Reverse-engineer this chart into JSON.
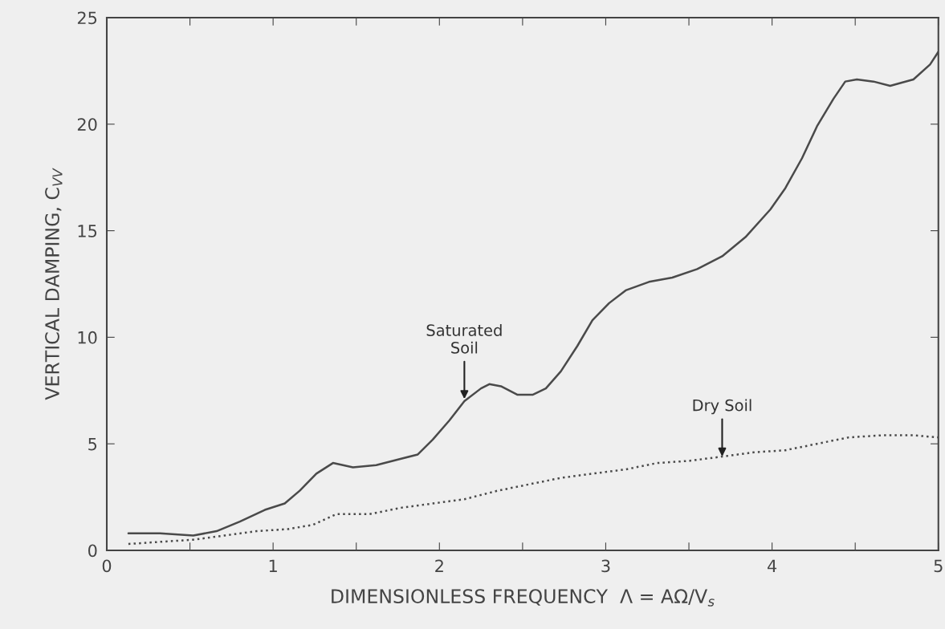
{
  "chart_data": {
    "type": "line",
    "xlabel": "DIMENSIONLESS FREQUENCY  Λ = AΩ/V$_{s}$",
    "ylabel": "VERTICAL DAMPING, C$_{VV}$",
    "xlim": [
      0,
      5
    ],
    "ylim": [
      0,
      25
    ],
    "xticks": [
      0,
      {
        "value": 0.5,
        "label": null
      },
      1,
      {
        "value": 1.5,
        "label": null
      },
      2,
      {
        "value": 2.5,
        "label": null
      },
      3,
      {
        "value": 3.5,
        "label": null
      },
      4,
      {
        "value": 4.5,
        "label": null
      },
      5
    ],
    "yticks": [
      0,
      5,
      10,
      15,
      20,
      25
    ],
    "grid": false,
    "legend": false,
    "series": [
      {
        "color": "#4a4a4a",
        "line_style": "solid",
        "x": [
          0.13,
          0.32,
          0.52,
          0.66,
          0.8,
          0.95,
          1.07,
          1.16,
          1.26,
          1.36,
          1.48,
          1.62,
          1.77,
          1.87,
          1.96,
          2.06,
          2.15,
          2.25,
          2.3,
          2.37,
          2.47,
          2.56,
          2.64,
          2.73,
          2.83,
          2.92,
          3.02,
          3.12,
          3.26,
          3.4,
          3.55,
          3.7,
          3.84,
          3.99,
          4.08,
          4.18,
          4.27,
          4.37,
          4.44,
          4.51,
          4.61,
          4.71,
          4.85,
          4.95,
          5.0
        ],
        "values": [
          0.8,
          0.8,
          0.7,
          0.9,
          1.35,
          1.9,
          2.2,
          2.8,
          3.6,
          4.1,
          3.9,
          4.0,
          4.3,
          4.5,
          5.2,
          6.1,
          7.0,
          7.6,
          7.8,
          7.7,
          7.3,
          7.3,
          7.6,
          8.4,
          9.6,
          10.8,
          11.6,
          12.2,
          12.6,
          12.8,
          13.2,
          13.8,
          14.7,
          16.0,
          17.0,
          18.4,
          19.9,
          21.2,
          22.0,
          22.1,
          22.0,
          21.8,
          22.1,
          22.8,
          23.4
        ]
      },
      {
        "color": "#4a4a4a",
        "line_style": "dotted",
        "x": [
          0.13,
          0.32,
          0.52,
          0.71,
          0.9,
          1.09,
          1.24,
          1.38,
          1.58,
          1.77,
          1.96,
          2.15,
          2.35,
          2.54,
          2.73,
          2.92,
          3.12,
          3.31,
          3.5,
          3.7,
          3.89,
          4.08,
          4.27,
          4.46,
          4.66,
          4.85,
          5.0
        ],
        "values": [
          0.3,
          0.4,
          0.5,
          0.7,
          0.9,
          1.0,
          1.2,
          1.7,
          1.7,
          2.0,
          2.2,
          2.4,
          2.8,
          3.1,
          3.4,
          3.6,
          3.8,
          4.1,
          4.2,
          4.4,
          4.6,
          4.7,
          5.0,
          5.3,
          5.4,
          5.4,
          5.3
        ]
      }
    ],
    "annotations": [
      {
        "text": "Saturated\nSoil",
        "x": 2.15,
        "y": 7.0
      },
      {
        "text": "Dry Soil",
        "x": 3.7,
        "y": 4.3
      }
    ]
  }
}
